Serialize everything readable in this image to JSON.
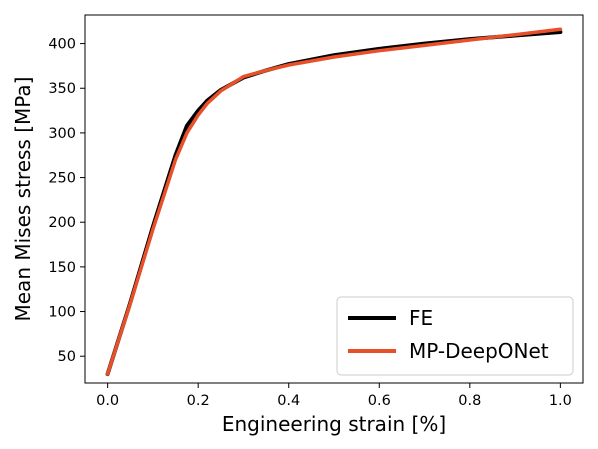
{
  "chart_data": {
    "type": "line",
    "title": "",
    "xlabel": "Engineering strain [%]",
    "ylabel": "Mean Mises stress [MPa]",
    "xlim": [
      -0.05,
      1.05
    ],
    "ylim": [
      20,
      432
    ],
    "xticks": [
      0.0,
      0.2,
      0.4,
      0.6,
      0.8,
      1.0
    ],
    "xtick_labels": [
      "0.0",
      "0.2",
      "0.4",
      "0.6",
      "0.8",
      "1.0"
    ],
    "yticks": [
      50,
      100,
      150,
      200,
      250,
      300,
      350,
      400
    ],
    "ytick_labels": [
      "50",
      "100",
      "150",
      "200",
      "250",
      "300",
      "350",
      "400"
    ],
    "grid": false,
    "legend_position": "lower-right",
    "series": [
      {
        "name": "FE",
        "color": "#000000",
        "x": [
          0.0,
          0.05,
          0.1,
          0.15,
          0.175,
          0.2,
          0.22,
          0.25,
          0.3,
          0.35,
          0.4,
          0.5,
          0.6,
          0.7,
          0.8,
          0.9,
          1.0
        ],
        "y": [
          30,
          110,
          195,
          275,
          308,
          325,
          336,
          348,
          362,
          370,
          377,
          387,
          394,
          400,
          405,
          409,
          413
        ]
      },
      {
        "name": "MP-DeepONet",
        "color": "#e8502a",
        "x": [
          0.0,
          0.05,
          0.1,
          0.15,
          0.175,
          0.2,
          0.22,
          0.25,
          0.3,
          0.35,
          0.4,
          0.5,
          0.6,
          0.7,
          0.8,
          0.9,
          1.0
        ],
        "y": [
          30,
          109,
          192,
          270,
          300,
          320,
          333,
          347,
          363,
          370,
          376,
          385,
          392,
          398,
          404,
          410,
          416
        ]
      }
    ]
  }
}
